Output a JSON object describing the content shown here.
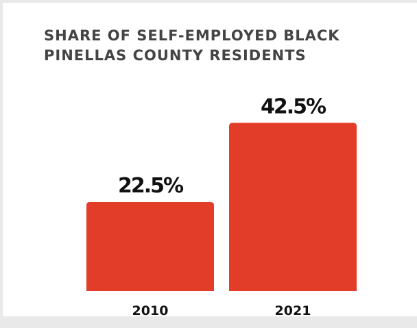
{
  "chart_data": {
    "type": "bar",
    "title": "SHARE OF SELF-EMPLOYED BLACK PINELLAS COUNTY RESIDENTS",
    "categories": [
      "2010",
      "2021"
    ],
    "values": [
      22.5,
      42.5
    ],
    "value_labels": [
      "22.5%",
      "42.5%"
    ],
    "xlabel": "",
    "ylabel": "",
    "ylim": [
      0,
      100
    ],
    "grid": false,
    "legend": "none",
    "bar_color": "#e23d28"
  }
}
